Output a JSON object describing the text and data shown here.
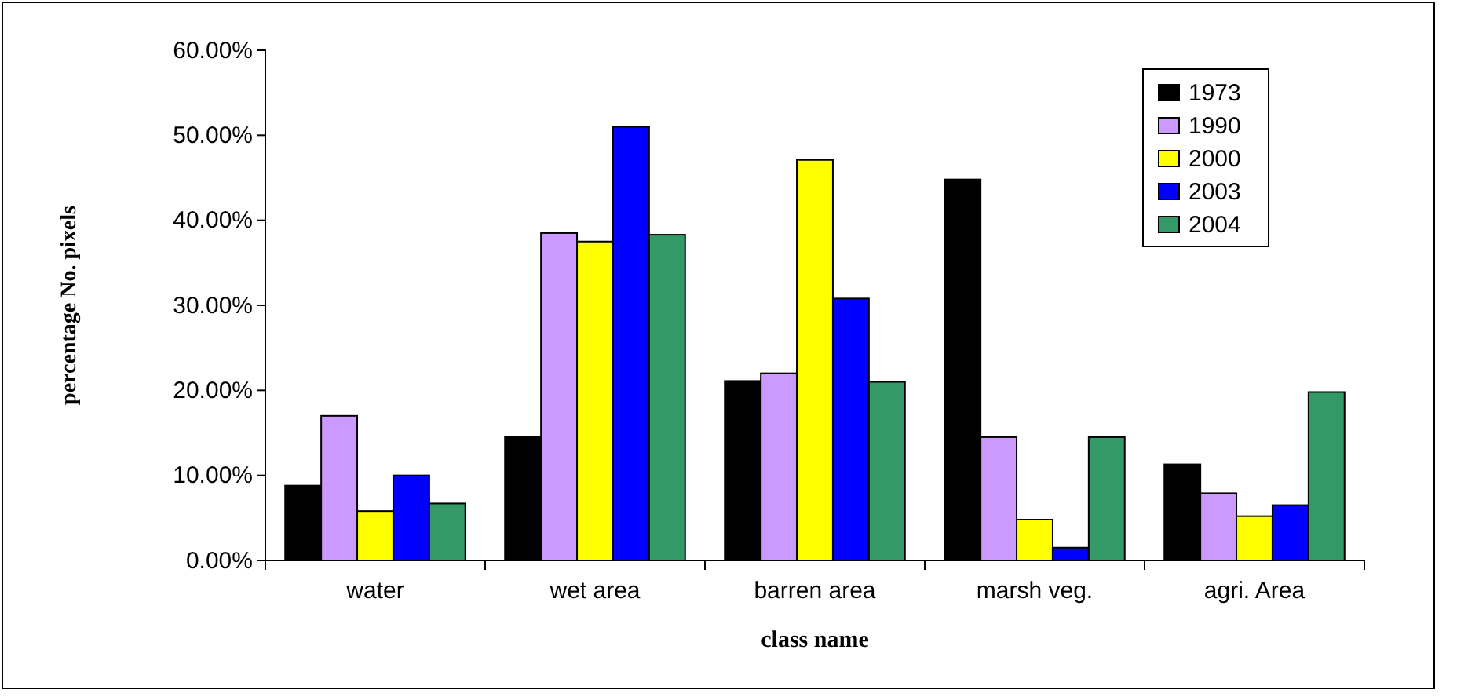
{
  "chart_data": {
    "type": "bar",
    "xlabel": "class name",
    "ylabel": "percentage No. pixels",
    "categories": [
      "water",
      "wet area",
      "barren area",
      "marsh veg.",
      "agri. Area"
    ],
    "series": [
      {
        "name": "1973",
        "color": "#000000",
        "values": [
          8.8,
          14.5,
          21.1,
          44.8,
          11.3
        ]
      },
      {
        "name": "1990",
        "color": "#cc99ff",
        "values": [
          17.0,
          38.5,
          22.0,
          14.5,
          7.9
        ]
      },
      {
        "name": "2000",
        "color": "#ffff00",
        "values": [
          5.8,
          37.5,
          47.1,
          4.8,
          5.2
        ]
      },
      {
        "name": "2003",
        "color": "#0000ff",
        "values": [
          10.0,
          51.0,
          30.8,
          1.5,
          6.5
        ]
      },
      {
        "name": "2004",
        "color": "#339966",
        "values": [
          6.7,
          38.3,
          21.0,
          14.5,
          19.8
        ]
      }
    ],
    "ylim": [
      0,
      60
    ],
    "yticks": [
      {
        "value": 0,
        "label": "0.00%"
      },
      {
        "value": 10,
        "label": "10.00%"
      },
      {
        "value": 20,
        "label": "20.00%"
      },
      {
        "value": 30,
        "label": "30.00%"
      },
      {
        "value": 40,
        "label": "40.00%"
      },
      {
        "value": 50,
        "label": "50.00%"
      },
      {
        "value": 60,
        "label": "60.00%"
      }
    ],
    "grid": false,
    "legend": "top right"
  }
}
